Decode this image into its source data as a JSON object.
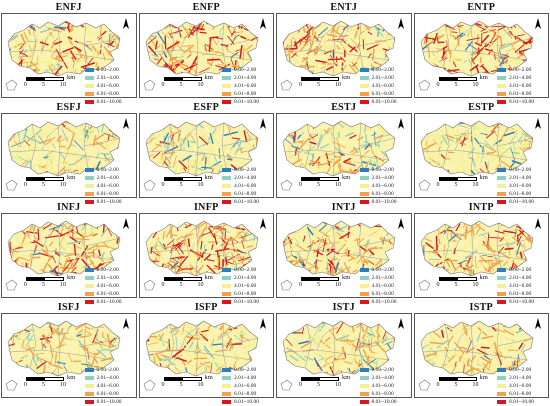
{
  "panels": [
    {
      "title": "ENFJ",
      "variant": 0
    },
    {
      "title": "ENFP",
      "variant": 1
    },
    {
      "title": "ENTJ",
      "variant": 0
    },
    {
      "title": "ENTP",
      "variant": 1
    },
    {
      "title": "ESFJ",
      "variant": 2
    },
    {
      "title": "ESFP",
      "variant": 2
    },
    {
      "title": "ESTJ",
      "variant": 2
    },
    {
      "title": "ESTP",
      "variant": 2
    },
    {
      "title": "INFJ",
      "variant": 1
    },
    {
      "title": "INFP",
      "variant": 1
    },
    {
      "title": "INTJ",
      "variant": 0
    },
    {
      "title": "INTP",
      "variant": 0
    },
    {
      "title": "ISFJ",
      "variant": 3
    },
    {
      "title": "ISFP",
      "variant": 3
    },
    {
      "title": "ISTJ",
      "variant": 3
    },
    {
      "title": "ISTP",
      "variant": 3
    }
  ],
  "legend": [
    {
      "label": "0.00~2.00",
      "color": "#2b7fc0"
    },
    {
      "label": "2.01~4.00",
      "color": "#8fd1c0"
    },
    {
      "label": "4.01~6.00",
      "color": "#f4ef8f"
    },
    {
      "label": "6.01~8.00",
      "color": "#f5a04a"
    },
    {
      "label": "8.01~10.00",
      "color": "#d7191c"
    }
  ],
  "scale": {
    "ticks": [
      "0",
      "5",
      "10"
    ],
    "unit": "km"
  },
  "north_symbol": "north-arrow",
  "map_colors": {
    "base": "#fbf3b0",
    "outline": "#7a7a7a"
  }
}
